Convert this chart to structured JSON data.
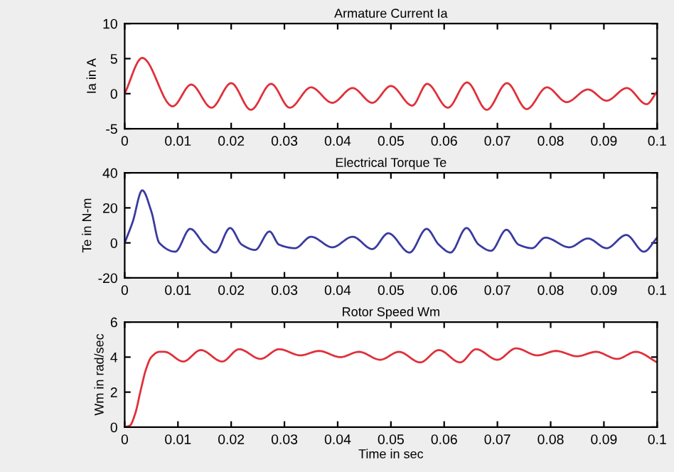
{
  "chart_data": [
    {
      "type": "line",
      "title": "Armature Current Ia",
      "ylabel": "Ia in A",
      "xlim": [
        0,
        0.1
      ],
      "ylim": [
        -5,
        10
      ],
      "xticks": [
        0,
        0.01,
        0.02,
        0.03,
        0.04,
        0.05,
        0.06,
        0.07,
        0.08,
        0.09,
        0.1
      ],
      "yticks": [
        -5,
        0,
        5,
        10
      ],
      "grid": false,
      "legend": false,
      "series": [
        {
          "color": "#e0303a",
          "x": [
            0,
            0.0033,
            0.009,
            0.0125,
            0.0163,
            0.02,
            0.0237,
            0.0275,
            0.031,
            0.035,
            0.039,
            0.0428,
            0.0465,
            0.05,
            0.054,
            0.0568,
            0.0607,
            0.0643,
            0.068,
            0.0718,
            0.0755,
            0.0793,
            0.083,
            0.087,
            0.0905,
            0.0943,
            0.098,
            0.1
          ],
          "values": [
            0,
            5.1,
            -1.8,
            1.3,
            -2.0,
            1.5,
            -2.3,
            1.4,
            -2.0,
            0.9,
            -1.3,
            0.8,
            -1.3,
            1.1,
            -1.7,
            1.4,
            -2.0,
            1.6,
            -2.3,
            1.5,
            -2.2,
            0.9,
            -1.2,
            0.6,
            -1.0,
            0.8,
            -1.5,
            0.3
          ]
        }
      ]
    },
    {
      "type": "line",
      "title": "Electrical Torque Te",
      "ylabel": "Te in N-m",
      "xlim": [
        0,
        0.1
      ],
      "ylim": [
        -20,
        40
      ],
      "xticks": [
        0,
        0.01,
        0.02,
        0.03,
        0.04,
        0.05,
        0.06,
        0.07,
        0.08,
        0.09,
        0.1
      ],
      "yticks": [
        -20,
        0,
        20,
        40
      ],
      "grid": false,
      "legend": false,
      "series": [
        {
          "color": "#3a3aa0",
          "x": [
            0,
            0.0015,
            0.0033,
            0.005,
            0.0065,
            0.0095,
            0.0123,
            0.015,
            0.017,
            0.0198,
            0.022,
            0.0245,
            0.0272,
            0.029,
            0.032,
            0.035,
            0.039,
            0.0428,
            0.0465,
            0.0495,
            0.0535,
            0.0567,
            0.059,
            0.0612,
            0.0642,
            0.0665,
            0.0688,
            0.0717,
            0.074,
            0.0765,
            0.079,
            0.0835,
            0.087,
            0.0905,
            0.0942,
            0.0975,
            0.1
          ],
          "values": [
            0,
            12,
            30,
            18,
            0,
            -5,
            8,
            -1,
            -5.5,
            8.5,
            -1,
            -4,
            6.5,
            -1,
            -3,
            3.5,
            -2.5,
            3.5,
            -3.5,
            5.5,
            -5.5,
            8,
            -1,
            -5.5,
            8.5,
            -1,
            -4.5,
            7.5,
            -1,
            -3,
            3,
            -2.5,
            2.5,
            -3,
            4.5,
            -5,
            3
          ]
        }
      ]
    },
    {
      "type": "line",
      "title": "Rotor Speed Wm",
      "ylabel": "Wm in rad/sec",
      "xlabel": "Time in sec",
      "xlim": [
        0,
        0.1
      ],
      "ylim": [
        0,
        6
      ],
      "xticks": [
        0,
        0.01,
        0.02,
        0.03,
        0.04,
        0.05,
        0.06,
        0.07,
        0.08,
        0.09,
        0.1
      ],
      "yticks": [
        0,
        2,
        4,
        6
      ],
      "grid": false,
      "legend": false,
      "series": [
        {
          "color": "#e0303a",
          "x": [
            0,
            0.001,
            0.002,
            0.003,
            0.004,
            0.005,
            0.0065,
            0.0075,
            0.011,
            0.0143,
            0.0183,
            0.0215,
            0.0255,
            0.029,
            0.033,
            0.0365,
            0.0405,
            0.044,
            0.048,
            0.0515,
            0.0555,
            0.059,
            0.063,
            0.066,
            0.07,
            0.0735,
            0.0775,
            0.081,
            0.085,
            0.0885,
            0.0925,
            0.096,
            0.1
          ],
          "values": [
            0,
            0.1,
            0.8,
            2.1,
            3.3,
            4.0,
            4.3,
            4.3,
            3.75,
            4.4,
            3.75,
            4.45,
            3.9,
            4.45,
            4.1,
            4.35,
            4.0,
            4.3,
            3.85,
            4.3,
            3.7,
            4.4,
            3.7,
            4.45,
            3.85,
            4.5,
            4.1,
            4.35,
            4.05,
            4.3,
            3.9,
            4.3,
            3.7
          ]
        }
      ]
    }
  ]
}
